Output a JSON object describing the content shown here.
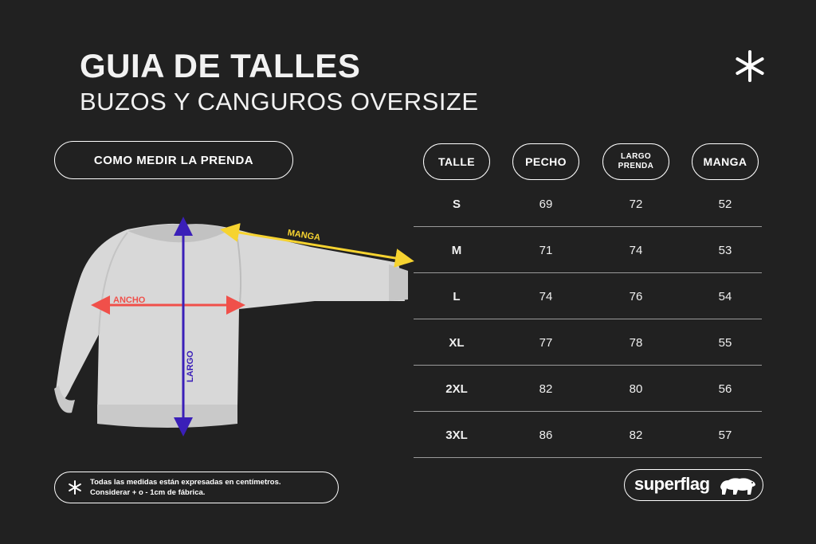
{
  "header": {
    "title": "GUIA DE TALLES",
    "subtitle": "BUZOS Y CANGUROS OVERSIZE"
  },
  "measure": {
    "label": "COMO MEDIR LA PRENDA",
    "labels": {
      "sleeve": "MANGA",
      "width": "ANCHO",
      "length": "LARGO"
    }
  },
  "colors": {
    "background": "#212121",
    "sleeve_arrow": "#f6d330",
    "width_arrow": "#f0504a",
    "length_arrow": "#3a1fb8",
    "garment": "#d8d8d8"
  },
  "table": {
    "headers": {
      "size": "TALLE",
      "chest": "PECHO",
      "length_1": "LARGO",
      "length_2": "PRENDA",
      "sleeve": "MANGA"
    },
    "rows": [
      {
        "size": "S",
        "chest": "69",
        "length": "72",
        "sleeve": "52"
      },
      {
        "size": "M",
        "chest": "71",
        "length": "74",
        "sleeve": "53"
      },
      {
        "size": "L",
        "chest": "74",
        "length": "76",
        "sleeve": "54"
      },
      {
        "size": "XL",
        "chest": "77",
        "length": "78",
        "sleeve": "55"
      },
      {
        "size": "2XL",
        "chest": "82",
        "length": "80",
        "sleeve": "56"
      },
      {
        "size": "3XL",
        "chest": "86",
        "length": "82",
        "sleeve": "57"
      }
    ]
  },
  "note": {
    "line1": "Todas las medidas están expresadas en centímetros.",
    "line2": "Considerar + o - 1cm de fábrica."
  },
  "brand": {
    "name": "superflag",
    "icon": "bear-icon"
  }
}
